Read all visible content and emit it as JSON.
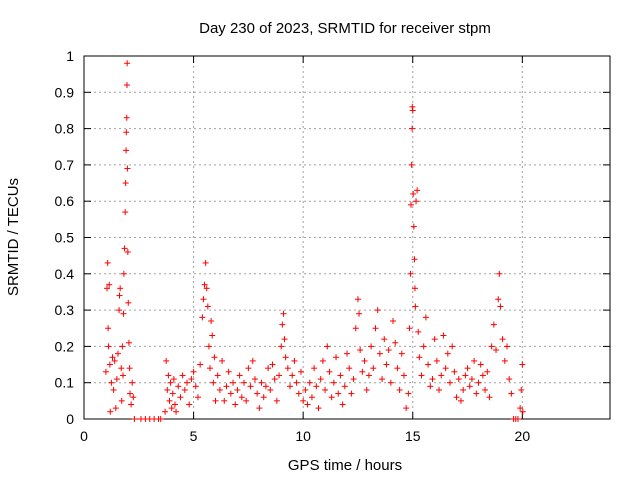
{
  "chart_data": {
    "type": "scatter",
    "title": "Day 230 of 2023, SRMTID for receiver stpm",
    "xlabel": "GPS time / hours",
    "ylabel": "SRMTID / TECUs",
    "xlim": [
      0,
      24
    ],
    "ylim": [
      0,
      1
    ],
    "xticks": [
      0,
      5,
      10,
      15,
      20
    ],
    "xtick_labels": [
      "0",
      "5",
      "10",
      "15",
      "20"
    ],
    "yticks": [
      0,
      0.1,
      0.2,
      0.3,
      0.4,
      0.5,
      0.6,
      0.7,
      0.8,
      0.9,
      1
    ],
    "ytick_labels": [
      "0",
      "0.1",
      "0.2",
      "0.3",
      "0.4",
      "0.5",
      "0.6",
      "0.7",
      "0.8",
      "0.9",
      "1"
    ],
    "grid": true,
    "marker": "plus",
    "color": "#ff0000",
    "series": [
      {
        "name": "stpm",
        "points": [
          [
            1.0,
            0.13
          ],
          [
            1.05,
            0.36
          ],
          [
            1.08,
            0.43
          ],
          [
            1.1,
            0.25
          ],
          [
            1.12,
            0.2
          ],
          [
            1.15,
            0.37
          ],
          [
            1.18,
            0.15
          ],
          [
            1.2,
            0.02
          ],
          [
            1.25,
            0.1
          ],
          [
            1.3,
            0.17
          ],
          [
            1.35,
            0.08
          ],
          [
            1.4,
            0.16
          ],
          [
            1.45,
            0.03
          ],
          [
            1.5,
            0.11
          ],
          [
            1.55,
            0.18
          ],
          [
            1.6,
            0.3
          ],
          [
            1.62,
            0.34
          ],
          [
            1.65,
            0.36
          ],
          [
            1.7,
            0.14
          ],
          [
            1.72,
            0.05
          ],
          [
            1.75,
            0.2
          ],
          [
            1.78,
            0.12
          ],
          [
            1.8,
            0.29
          ],
          [
            1.82,
            0.4
          ],
          [
            1.85,
            0.47
          ],
          [
            1.88,
            0.57
          ],
          [
            1.9,
            0.65
          ],
          [
            1.92,
            0.74
          ],
          [
            1.93,
            0.79
          ],
          [
            1.95,
            0.83
          ],
          [
            1.96,
            0.92
          ],
          [
            1.97,
            0.98
          ],
          [
            1.98,
            0.69
          ],
          [
            2.0,
            0.46
          ],
          [
            2.02,
            0.32
          ],
          [
            2.05,
            0.21
          ],
          [
            2.08,
            0.14
          ],
          [
            2.1,
            0.07
          ],
          [
            2.15,
            0.04
          ],
          [
            2.2,
            0.1
          ],
          [
            2.25,
            0.06
          ],
          [
            2.3,
            0.0
          ],
          [
            2.6,
            0.0
          ],
          [
            2.8,
            0.0
          ],
          [
            3.0,
            0.0
          ],
          [
            3.2,
            0.0
          ],
          [
            3.4,
            0.0
          ],
          [
            3.5,
            0.0
          ],
          [
            3.7,
            0.02
          ],
          [
            3.75,
            0.16
          ],
          [
            3.8,
            0.08
          ],
          [
            3.85,
            0.12
          ],
          [
            3.9,
            0.05
          ],
          [
            3.95,
            0.1
          ],
          [
            4.0,
            0.03
          ],
          [
            4.05,
            0.07
          ],
          [
            4.1,
            0.11
          ],
          [
            4.15,
            0.04
          ],
          [
            4.2,
            0.02
          ],
          [
            4.3,
            0.09
          ],
          [
            4.4,
            0.06
          ],
          [
            4.5,
            0.12
          ],
          [
            4.6,
            0.08
          ],
          [
            4.7,
            0.1
          ],
          [
            4.8,
            0.04
          ],
          [
            4.9,
            0.11
          ],
          [
            5.0,
            0.13
          ],
          [
            5.1,
            0.09
          ],
          [
            5.2,
            0.06
          ],
          [
            5.3,
            0.15
          ],
          [
            5.4,
            0.28
          ],
          [
            5.45,
            0.33
          ],
          [
            5.5,
            0.37
          ],
          [
            5.55,
            0.43
          ],
          [
            5.6,
            0.36
          ],
          [
            5.65,
            0.31
          ],
          [
            5.7,
            0.2
          ],
          [
            5.75,
            0.14
          ],
          [
            5.8,
            0.27
          ],
          [
            5.85,
            0.23
          ],
          [
            5.9,
            0.1
          ],
          [
            5.95,
            0.17
          ],
          [
            6.0,
            0.05
          ],
          [
            6.1,
            0.12
          ],
          [
            6.2,
            0.08
          ],
          [
            6.3,
            0.16
          ],
          [
            6.4,
            0.05
          ],
          [
            6.5,
            0.09
          ],
          [
            6.6,
            0.13
          ],
          [
            6.7,
            0.07
          ],
          [
            6.8,
            0.1
          ],
          [
            6.9,
            0.04
          ],
          [
            7.0,
            0.08
          ],
          [
            7.1,
            0.12
          ],
          [
            7.2,
            0.06
          ],
          [
            7.3,
            0.1
          ],
          [
            7.4,
            0.05
          ],
          [
            7.5,
            0.14
          ],
          [
            7.6,
            0.09
          ],
          [
            7.7,
            0.16
          ],
          [
            7.8,
            0.11
          ],
          [
            7.9,
            0.07
          ],
          [
            8.0,
            0.03
          ],
          [
            8.1,
            0.1
          ],
          [
            8.2,
            0.06
          ],
          [
            8.3,
            0.09
          ],
          [
            8.4,
            0.14
          ],
          [
            8.5,
            0.08
          ],
          [
            8.6,
            0.15
          ],
          [
            8.7,
            0.11
          ],
          [
            8.8,
            0.05
          ],
          [
            8.9,
            0.12
          ],
          [
            9.0,
            0.2
          ],
          [
            9.05,
            0.26
          ],
          [
            9.1,
            0.29
          ],
          [
            9.15,
            0.22
          ],
          [
            9.2,
            0.17
          ],
          [
            9.3,
            0.14
          ],
          [
            9.4,
            0.09
          ],
          [
            9.5,
            0.12
          ],
          [
            9.6,
            0.16
          ],
          [
            9.7,
            0.1
          ],
          [
            9.8,
            0.07
          ],
          [
            9.9,
            0.13
          ],
          [
            10.0,
            0.05
          ],
          [
            10.1,
            0.08
          ],
          [
            10.2,
            0.04
          ],
          [
            10.3,
            0.1
          ],
          [
            10.4,
            0.06
          ],
          [
            10.5,
            0.14
          ],
          [
            10.6,
            0.09
          ],
          [
            10.7,
            0.03
          ],
          [
            10.8,
            0.11
          ],
          [
            10.9,
            0.16
          ],
          [
            11.0,
            0.08
          ],
          [
            11.1,
            0.2
          ],
          [
            11.2,
            0.13
          ],
          [
            11.3,
            0.06
          ],
          [
            11.4,
            0.1
          ],
          [
            11.5,
            0.17
          ],
          [
            11.6,
            0.07
          ],
          [
            11.7,
            0.12
          ],
          [
            11.8,
            0.04
          ],
          [
            11.9,
            0.09
          ],
          [
            12.0,
            0.18
          ],
          [
            12.1,
            0.14
          ],
          [
            12.2,
            0.07
          ],
          [
            12.3,
            0.11
          ],
          [
            12.4,
            0.25
          ],
          [
            12.5,
            0.33
          ],
          [
            12.55,
            0.29
          ],
          [
            12.6,
            0.19
          ],
          [
            12.7,
            0.13
          ],
          [
            12.8,
            0.16
          ],
          [
            12.9,
            0.08
          ],
          [
            13.0,
            0.12
          ],
          [
            13.1,
            0.2
          ],
          [
            13.2,
            0.14
          ],
          [
            13.3,
            0.25
          ],
          [
            13.4,
            0.3
          ],
          [
            13.5,
            0.18
          ],
          [
            13.6,
            0.11
          ],
          [
            13.7,
            0.22
          ],
          [
            13.8,
            0.15
          ],
          [
            13.9,
            0.19
          ],
          [
            14.0,
            0.1
          ],
          [
            14.1,
            0.27
          ],
          [
            14.2,
            0.21
          ],
          [
            14.3,
            0.14
          ],
          [
            14.4,
            0.08
          ],
          [
            14.5,
            0.18
          ],
          [
            14.6,
            0.12
          ],
          [
            14.7,
            0.03
          ],
          [
            14.8,
            0.07
          ],
          [
            14.85,
            0.25
          ],
          [
            14.9,
            0.4
          ],
          [
            14.92,
            0.59
          ],
          [
            14.95,
            0.7
          ],
          [
            14.97,
            0.8
          ],
          [
            14.98,
            0.86
          ],
          [
            15.0,
            0.85
          ],
          [
            15.02,
            0.62
          ],
          [
            15.05,
            0.53
          ],
          [
            15.08,
            0.44
          ],
          [
            15.1,
            0.36
          ],
          [
            15.12,
            0.31
          ],
          [
            15.15,
            0.6
          ],
          [
            15.2,
            0.63
          ],
          [
            15.25,
            0.24
          ],
          [
            15.3,
            0.17
          ],
          [
            15.4,
            0.12
          ],
          [
            15.5,
            0.2
          ],
          [
            15.6,
            0.28
          ],
          [
            15.7,
            0.15
          ],
          [
            15.8,
            0.09
          ],
          [
            15.9,
            0.11
          ],
          [
            16.0,
            0.22
          ],
          [
            16.1,
            0.16
          ],
          [
            16.2,
            0.08
          ],
          [
            16.3,
            0.12
          ],
          [
            16.4,
            0.23
          ],
          [
            16.5,
            0.14
          ],
          [
            16.6,
            0.18
          ],
          [
            16.7,
            0.1
          ],
          [
            16.8,
            0.2
          ],
          [
            16.9,
            0.13
          ],
          [
            17.0,
            0.06
          ],
          [
            17.1,
            0.11
          ],
          [
            17.2,
            0.05
          ],
          [
            17.3,
            0.08
          ],
          [
            17.4,
            0.12
          ],
          [
            17.5,
            0.14
          ],
          [
            17.6,
            0.09
          ],
          [
            17.7,
            0.11
          ],
          [
            17.8,
            0.16
          ],
          [
            17.9,
            0.07
          ],
          [
            18.0,
            0.1
          ],
          [
            18.1,
            0.15
          ],
          [
            18.2,
            0.12
          ],
          [
            18.3,
            0.08
          ],
          [
            18.4,
            0.13
          ],
          [
            18.5,
            0.06
          ],
          [
            18.6,
            0.2
          ],
          [
            18.7,
            0.26
          ],
          [
            18.8,
            0.19
          ],
          [
            18.9,
            0.33
          ],
          [
            18.95,
            0.4
          ],
          [
            19.0,
            0.31
          ],
          [
            19.1,
            0.22
          ],
          [
            19.2,
            0.16
          ],
          [
            19.3,
            0.2
          ],
          [
            19.4,
            0.11
          ],
          [
            19.5,
            0.07
          ],
          [
            19.6,
            0.0
          ],
          [
            19.7,
            0.0
          ],
          [
            19.8,
            0.0
          ],
          [
            19.9,
            0.03
          ],
          [
            19.95,
            0.08
          ],
          [
            20.0,
            0.15
          ],
          [
            20.02,
            0.02
          ]
        ]
      }
    ]
  }
}
